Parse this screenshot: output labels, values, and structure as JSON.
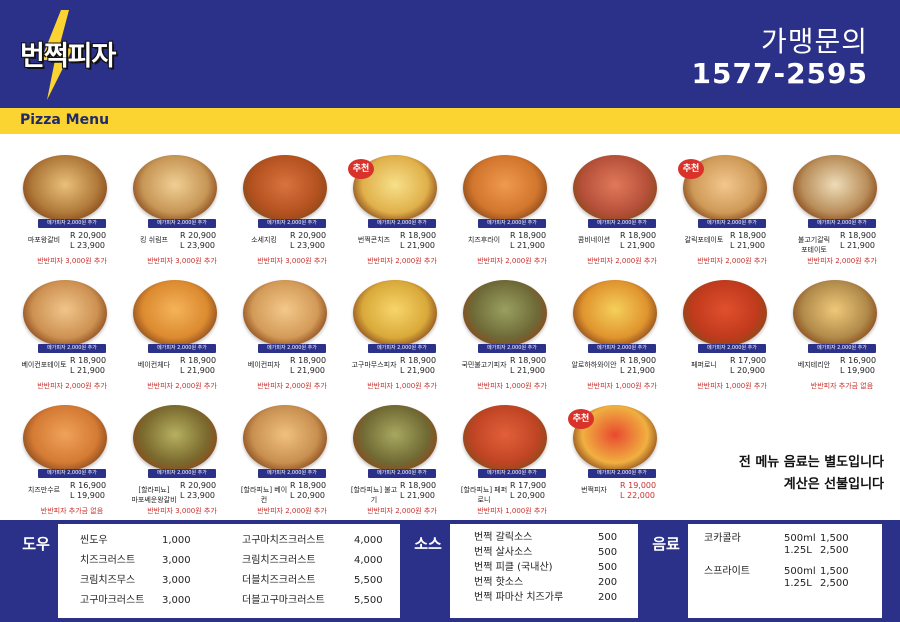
{
  "brand": {
    "logo_text": "번쩍피자",
    "contact_label": "가맹문의",
    "phone": "1577-2595"
  },
  "section_title": "Pizza Menu",
  "colors": {
    "navy": "#2b3089",
    "yellow": "#fcd432",
    "red": "#c9302c"
  },
  "items": [
    {
      "name": "마포왕갈비",
      "r": "R 20,900",
      "l": "L 23,900",
      "extra": "반반피자 3,000원 추가",
      "mega": "메가피자 2,000원 추가",
      "rec": false,
      "c1": "#e9c07a",
      "c2": "#b07a3a"
    },
    {
      "name": "킹 쉬림프",
      "r": "R 20,900",
      "l": "L 23,900",
      "extra": "반반피자 3,000원 추가",
      "mega": "메가피자 2,000원 추가",
      "rec": false,
      "c1": "#f0cf94",
      "c2": "#c69656"
    },
    {
      "name": "소세지킹",
      "r": "R 20,900",
      "l": "L 23,900",
      "extra": "반반피자 3,000원 추가",
      "mega": "메가피자 2,000원 추가",
      "rec": false,
      "c1": "#d9723e",
      "c2": "#b5521f"
    },
    {
      "name": "번쩍콘치즈",
      "r": "R 18,900",
      "l": "L 21,900",
      "extra": "반반피자 2,000원 추가",
      "mega": "메가피자 2,000원 추가",
      "rec": true,
      "c1": "#f7e08a",
      "c2": "#e0b04a"
    },
    {
      "name": "치즈후라이",
      "r": "R 18,900",
      "l": "L 21,900",
      "extra": "반반피자 2,000원 추가",
      "mega": "메가피자 2,000원 추가",
      "rec": false,
      "c1": "#ef9a4e",
      "c2": "#d2762d"
    },
    {
      "name": "콤비네이션",
      "r": "R 18,900",
      "l": "L 21,900",
      "extra": "반반피자 2,000원 추가",
      "mega": "메가피자 2,000원 추가",
      "rec": false,
      "c1": "#e07a5a",
      "c2": "#b7503a"
    },
    {
      "name": "갈릭포테이토",
      "r": "R 18,900",
      "l": "L 21,900",
      "extra": "반반피자 2,000원 추가",
      "mega": "메가피자 2,000원 추가",
      "rec": true,
      "c1": "#f2c78e",
      "c2": "#cf9a58"
    },
    {
      "name": "불고기갈릭\n포테이토",
      "r": "R 18,900",
      "l": "L 21,900",
      "extra": "반반피자 2,000원 추가",
      "mega": "메가피자 2,000원 추가",
      "rec": false,
      "c1": "#eedcb8",
      "c2": "#b98e5a"
    },
    {
      "name": "베이컨포테이토",
      "r": "R 18,900",
      "l": "L 21,900",
      "extra": "반반피자 2,000원 추가",
      "mega": "메가피자 2,000원 추가",
      "rec": false,
      "c1": "#f0c58a",
      "c2": "#cd9152"
    },
    {
      "name": "베이컨체다",
      "r": "R 18,900",
      "l": "L 21,900",
      "extra": "반반피자 2,000원 추가",
      "mega": "메가피자 2,000원 추가",
      "rec": false,
      "c1": "#f5b35a",
      "c2": "#dc8a2f"
    },
    {
      "name": "베이컨피자",
      "r": "R 18,900",
      "l": "L 21,900",
      "extra": "반반피자 2,000원 추가",
      "mega": "메가피자 2,000원 추가",
      "rec": false,
      "c1": "#f3c98a",
      "c2": "#d39a58"
    },
    {
      "name": "고구마무스피자",
      "r": "R 18,900",
      "l": "L 21,900",
      "extra": "반반피자 1,000원 추가",
      "mega": "메가피자 2,000원 추가",
      "rec": false,
      "c1": "#f7d56a",
      "c2": "#d9a93a"
    },
    {
      "name": "국민불고기피자",
      "r": "R 18,900",
      "l": "L 21,900",
      "extra": "반반피자 1,000원 추가",
      "mega": "메가피자 2,000원 추가",
      "rec": false,
      "c1": "#9aa060",
      "c2": "#6e6a38"
    },
    {
      "name": "알로하하와이안",
      "r": "R 18,900",
      "l": "L 21,900",
      "extra": "반반피자 1,000원 추가",
      "mega": "메가피자 2,000원 추가",
      "rec": false,
      "c1": "#f5d05a",
      "c2": "#e0942e"
    },
    {
      "name": "페퍼로니",
      "r": "R 17,900",
      "l": "L 20,900",
      "extra": "반반피자 1,000원 추가",
      "mega": "메가피자 2,000원 추가",
      "rec": false,
      "c1": "#e0502e",
      "c2": "#c03a1c"
    },
    {
      "name": "베지테리안",
      "r": "R 16,900",
      "l": "L 19,900",
      "extra": "반반피자 추가금 없음",
      "mega": "메가피자 2,000원 추가",
      "rec": false,
      "c1": "#f0c87a",
      "c2": "#b08a4a"
    },
    {
      "name": "치즈만수르",
      "r": "R 16,900",
      "l": "L 19,900",
      "extra": "반반피자 추가금 없음",
      "mega": "메가피자 2,000원 추가",
      "rec": false,
      "c1": "#f0a25a",
      "c2": "#d47a34"
    },
    {
      "name": "[할라피뇨]\n마포쎄운왕갈비",
      "r": "R 20,900",
      "l": "L 23,900",
      "extra": "반반피자 3,000원 추가",
      "mega": "메가피자 2,000원 추가",
      "rec": false,
      "c1": "#b6b060",
      "c2": "#7a6a2e"
    },
    {
      "name": "[할라피뇨] 베이컨",
      "r": "R 18,900",
      "l": "L 20,900",
      "extra": "반반피자 2,000원 추가",
      "mega": "메가피자 2,000원 추가",
      "rec": false,
      "c1": "#f0c080",
      "c2": "#c89050"
    },
    {
      "name": "[할라피뇨] 불고기",
      "r": "R 18,900",
      "l": "L 21,900",
      "extra": "반반피자 2,000원 추가",
      "mega": "메가피자 2,000원 추가",
      "rec": false,
      "c1": "#a8a860",
      "c2": "#706a34"
    },
    {
      "name": "[할라피뇨] 페퍼로니",
      "r": "R 17,900",
      "l": "L 20,900",
      "extra": "반반피자 1,000원 추가",
      "mega": "메가피자 2,000원 추가",
      "rec": false,
      "c1": "#e2603a",
      "c2": "#c04424"
    },
    {
      "name": "번쩍피자",
      "r": "R 19,000",
      "l": "L 22,000",
      "extra": "",
      "mega": "메가피자 2,000원 추가",
      "rec": true,
      "c1": "#e84a30",
      "c2": "#f0b040"
    }
  ],
  "note_lines": [
    "전 메뉴 음료는 별도입니다",
    "계산은 선불입니다"
  ],
  "dough": {
    "label": "도우",
    "rows": [
      {
        "name": "씬도우",
        "price": "1,000"
      },
      {
        "name": "치즈크러스트",
        "price": "3,000"
      },
      {
        "name": "크림치즈무스",
        "price": "3,000"
      },
      {
        "name": "고구마크러스트",
        "price": "3,000"
      }
    ],
    "rows2": [
      {
        "name": "고구마치즈크러스트",
        "price": "4,000"
      },
      {
        "name": "크림치즈크러스트",
        "price": "4,000"
      },
      {
        "name": "더블치즈크러스트",
        "price": "5,500"
      },
      {
        "name": "더블고구마크러스트",
        "price": "5,500"
      }
    ]
  },
  "sauce": {
    "label": "소스",
    "rows": [
      {
        "name": "번쩍 갈릭소스",
        "price": "500"
      },
      {
        "name": "번쩍 살사소스",
        "price": "500"
      },
      {
        "name": "번쩍 피클 (국내산)",
        "price": "500"
      },
      {
        "name": "번쩍 핫소스",
        "price": "200"
      },
      {
        "name": "번쩍 파마산 치즈가루",
        "price": "200"
      }
    ]
  },
  "drink": {
    "label": "음료",
    "rows": [
      {
        "name": "코카콜라",
        "size1": "500ml",
        "p1": "1,500",
        "size2": "1.25L",
        "p2": "2,500"
      },
      {
        "name": "스프라이트",
        "size1": "500ml",
        "p1": "1,500",
        "size2": "1.25L",
        "p2": "2,500"
      }
    ]
  },
  "rec_label": "추천"
}
